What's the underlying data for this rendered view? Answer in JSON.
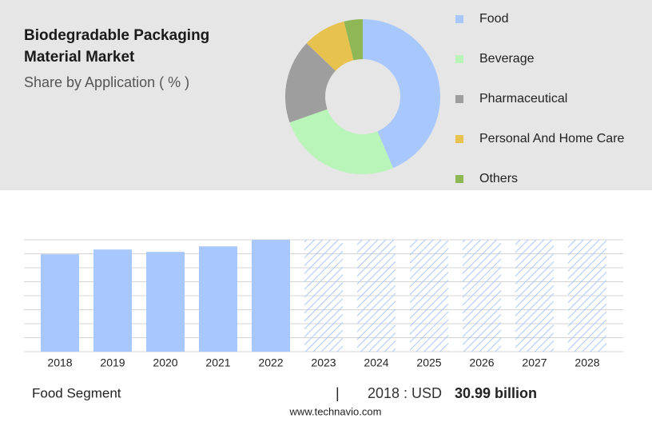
{
  "chart_data": [
    {
      "type": "donut",
      "title": "Biodegradable Packaging Material Market",
      "subtitle": "Share by Application ( % )",
      "categories": [
        "Food",
        "Beverage",
        "Pharmaceutical",
        "Personal And Home Care",
        "Others"
      ],
      "values": [
        43.6,
        26,
        17.5,
        9,
        3.9
      ],
      "colors": [
        "#a8c8fd",
        "#b9f4b9",
        "#9e9e9e",
        "#e8c24f",
        "#8fb755"
      ],
      "legend": "right"
    },
    {
      "type": "bar",
      "categories": [
        "2018",
        "2019",
        "2020",
        "2021",
        "2022",
        "2023",
        "2024",
        "2025",
        "2026",
        "2027",
        "2028"
      ],
      "values": [
        30.99,
        32.5,
        31.75,
        33.5,
        35.6,
        null,
        null,
        null,
        null,
        null,
        null
      ],
      "color": "#a8c8fd",
      "ylim": [
        0,
        35.6
      ],
      "grid": true
    }
  ],
  "footer": {
    "segment": "Food Segment",
    "separator": "|",
    "year_label": "2018 : USD",
    "value_label": "30.99 billion",
    "source": "www.technavio.com"
  }
}
